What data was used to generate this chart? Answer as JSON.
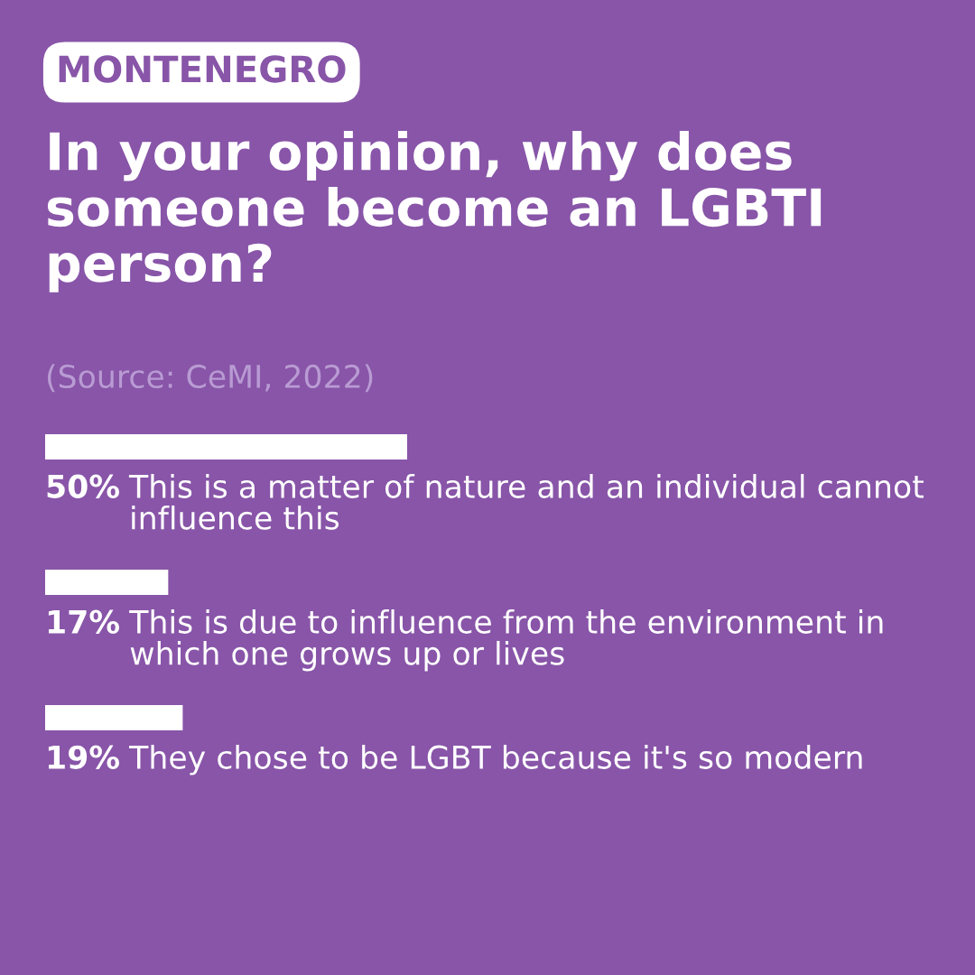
{
  "chart_data": {
    "type": "bar",
    "orientation": "horizontal",
    "subtitle": "MONTENEGRO",
    "title": "In your opinion, why does someone become an LGBTI person?",
    "annotations": [
      "(Source: CeMI, 2022)"
    ],
    "categories": [
      "This is a matter of nature and an individual cannot influence this",
      "This is due to influence from the environment in which one grows up or lives",
      "They chose to be LGBT because it's so modern"
    ],
    "values": [
      50,
      17,
      19
    ],
    "value_labels": [
      "50%",
      "17%",
      "19%"
    ],
    "color": "#ffffff"
  }
}
